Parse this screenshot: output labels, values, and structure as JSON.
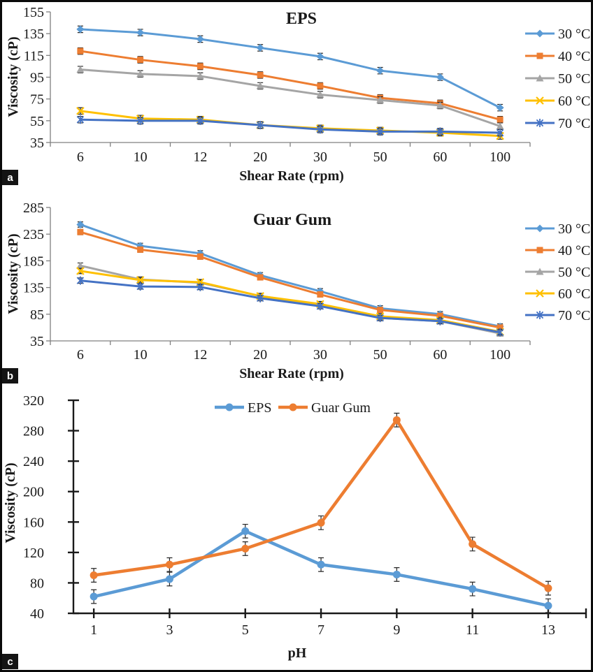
{
  "figure": {
    "panel_labels": [
      "a",
      "b",
      "c"
    ],
    "background": "#ffffff",
    "border_color": "#0a0a0a",
    "panel_label_bg": "#141414",
    "panel_label_fg": "#ffffff"
  },
  "styles": {
    "text_color": "#1a1a1a",
    "error_bar_color": "#262626",
    "axis_color_ab": "#808080",
    "axis_color_c": "#1a1a1a"
  },
  "chart_data": [
    {
      "id": "eps_shear",
      "type": "line",
      "title": "EPS",
      "xlabel": "Shear Rate (rpm)",
      "ylabel": "Viscosity (cP)",
      "categories": [
        "6",
        "10",
        "12",
        "20",
        "30",
        "50",
        "60",
        "100"
      ],
      "ylim": [
        35,
        155
      ],
      "yticks": [
        35,
        55,
        75,
        95,
        115,
        135,
        155
      ],
      "grid": false,
      "legend_position": "right",
      "axis_color": "#808080",
      "error_bar": 3,
      "series": [
        {
          "name": "30 °C",
          "color": "#5B9BD5",
          "marker": "diamond",
          "values": [
            139,
            136,
            130,
            122,
            114,
            101,
            95,
            67
          ]
        },
        {
          "name": "40 °C",
          "color": "#ED7D31",
          "marker": "square",
          "values": [
            119,
            111,
            105,
            97,
            87,
            76,
            71,
            56
          ]
        },
        {
          "name": "50 °C",
          "color": "#A5A5A5",
          "marker": "triangle",
          "values": [
            102,
            98,
            96,
            87,
            79,
            74,
            69,
            50
          ]
        },
        {
          "name": "60 °C",
          "color": "#FFC000",
          "marker": "x",
          "values": [
            64,
            57,
            56,
            51,
            48,
            46,
            44,
            41
          ]
        },
        {
          "name": "70 °C",
          "color": "#4472C4",
          "marker": "asterisk",
          "values": [
            56,
            55,
            55,
            51,
            47,
            45,
            45,
            44
          ]
        }
      ]
    },
    {
      "id": "guar_gum_shear",
      "type": "line",
      "title": "Guar Gum",
      "xlabel": "Shear Rate (rpm)",
      "ylabel": "Viscosity (cP)",
      "categories": [
        "6",
        "10",
        "12",
        "20",
        "30",
        "50",
        "60",
        "100"
      ],
      "ylim": [
        35,
        285
      ],
      "yticks": [
        35,
        85,
        135,
        185,
        235,
        285
      ],
      "grid": false,
      "legend_position": "right",
      "axis_color": "#808080",
      "error_bar": 5,
      "series": [
        {
          "name": "30 °C",
          "color": "#5B9BD5",
          "marker": "diamond",
          "values": [
            253,
            213,
            199,
            158,
            128,
            96,
            85,
            62
          ]
        },
        {
          "name": "40 °C",
          "color": "#ED7D31",
          "marker": "square",
          "values": [
            239,
            206,
            193,
            154,
            122,
            93,
            82,
            60
          ]
        },
        {
          "name": "50 °C",
          "color": "#A5A5A5",
          "marker": "triangle",
          "values": [
            176,
            150,
            144,
            119,
            103,
            78,
            72,
            49
          ]
        },
        {
          "name": "60 °C",
          "color": "#FFC000",
          "marker": "x",
          "values": [
            166,
            149,
            145,
            119,
            104,
            81,
            74,
            52
          ]
        },
        {
          "name": "70 °C",
          "color": "#4472C4",
          "marker": "asterisk",
          "values": [
            148,
            137,
            136,
            115,
            100,
            78,
            72,
            51
          ]
        }
      ]
    },
    {
      "id": "ph_viscosity",
      "type": "line",
      "title": "",
      "xlabel": "pH",
      "ylabel": "Viscosity (cP)",
      "categories": [
        "1",
        "3",
        "5",
        "7",
        "9",
        "11",
        "13"
      ],
      "ylim": [
        40,
        320
      ],
      "yticks": [
        40,
        80,
        120,
        160,
        200,
        240,
        280,
        320
      ],
      "grid": false,
      "legend_position": "top",
      "axis_color": "#1a1a1a",
      "error_bar": 9,
      "series": [
        {
          "name": "EPS",
          "color": "#5B9BD5",
          "marker": "circle",
          "values": [
            62,
            85,
            148,
            104,
            91,
            72,
            50
          ]
        },
        {
          "name": "Guar Gum",
          "color": "#ED7D31",
          "marker": "circle",
          "values": [
            90,
            104,
            125,
            159,
            294,
            131,
            73
          ]
        }
      ]
    }
  ]
}
